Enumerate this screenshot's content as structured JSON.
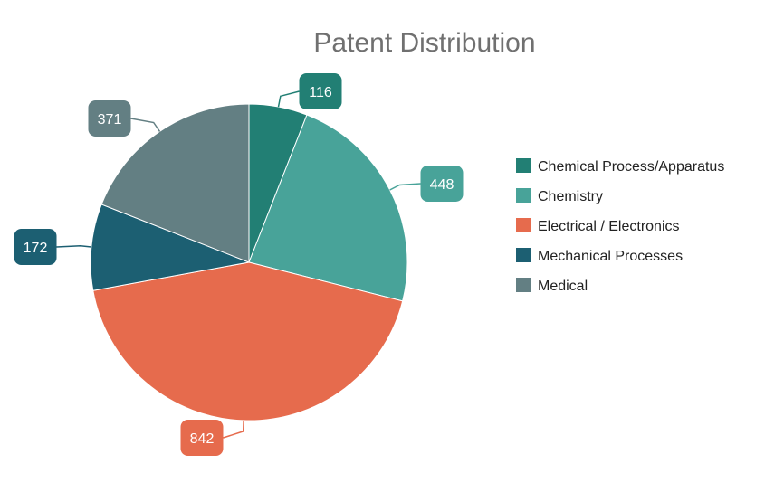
{
  "chart_data": {
    "type": "pie",
    "title": "Patent Distribution",
    "categories": [
      "Chemical Process/Apparatus",
      "Chemistry",
      "Electrical / Electronics",
      "Mechanical Processes",
      "Medical"
    ],
    "values": [
      116,
      448,
      842,
      172,
      371
    ],
    "colors": [
      "#227f74",
      "#48a399",
      "#e66b4d",
      "#1c5f72",
      "#637f83"
    ],
    "legend": "right",
    "data_labels": true
  }
}
